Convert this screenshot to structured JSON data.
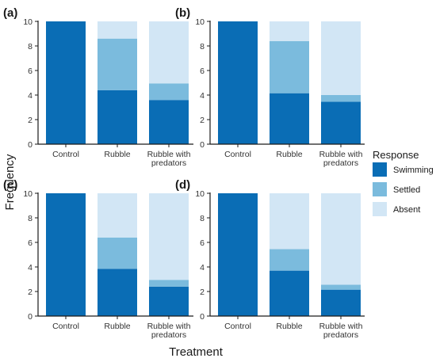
{
  "chart_data": {
    "type": "bar",
    "stacked": true,
    "xlabel": "Treatment",
    "ylabel": "Frequency",
    "ylim": [
      0,
      10
    ],
    "yticks": [
      0,
      2,
      4,
      6,
      8,
      10
    ],
    "categories": [
      "Control",
      "Rubble",
      "Rubble with predators"
    ],
    "category_lines": [
      [
        "Control"
      ],
      [
        "Rubble"
      ],
      [
        "Rubble with",
        "predators"
      ]
    ],
    "legend": {
      "title": "Response",
      "position": "right",
      "entries": [
        {
          "name": "Swimming",
          "color": "#0a6db5"
        },
        {
          "name": "Settled",
          "color": "#7bbbdd"
        },
        {
          "name": "Absent",
          "color": "#d2e6f5"
        }
      ]
    },
    "panels": [
      {
        "label": "(a)",
        "series": [
          {
            "name": "Swimming",
            "values": [
              10,
              4.4,
              3.6
            ]
          },
          {
            "name": "Settled",
            "values": [
              0,
              4.2,
              1.35
            ]
          },
          {
            "name": "Absent",
            "values": [
              0,
              1.4,
              5.05
            ]
          }
        ]
      },
      {
        "label": "(b)",
        "series": [
          {
            "name": "Swimming",
            "values": [
              10,
              4.15,
              3.45
            ]
          },
          {
            "name": "Settled",
            "values": [
              0,
              4.25,
              0.55
            ]
          },
          {
            "name": "Absent",
            "values": [
              0,
              1.6,
              6.0
            ]
          }
        ]
      },
      {
        "label": "(c)",
        "series": [
          {
            "name": "Swimming",
            "values": [
              10,
              3.85,
              2.4
            ]
          },
          {
            "name": "Settled",
            "values": [
              0,
              2.55,
              0.55
            ]
          },
          {
            "name": "Absent",
            "values": [
              0,
              3.6,
              7.05
            ]
          }
        ]
      },
      {
        "label": "(d)",
        "series": [
          {
            "name": "Swimming",
            "values": [
              10,
              3.7,
              2.15
            ]
          },
          {
            "name": "Settled",
            "values": [
              0,
              1.75,
              0.4
            ]
          },
          {
            "name": "Absent",
            "values": [
              0,
              4.55,
              7.45
            ]
          }
        ]
      }
    ]
  }
}
